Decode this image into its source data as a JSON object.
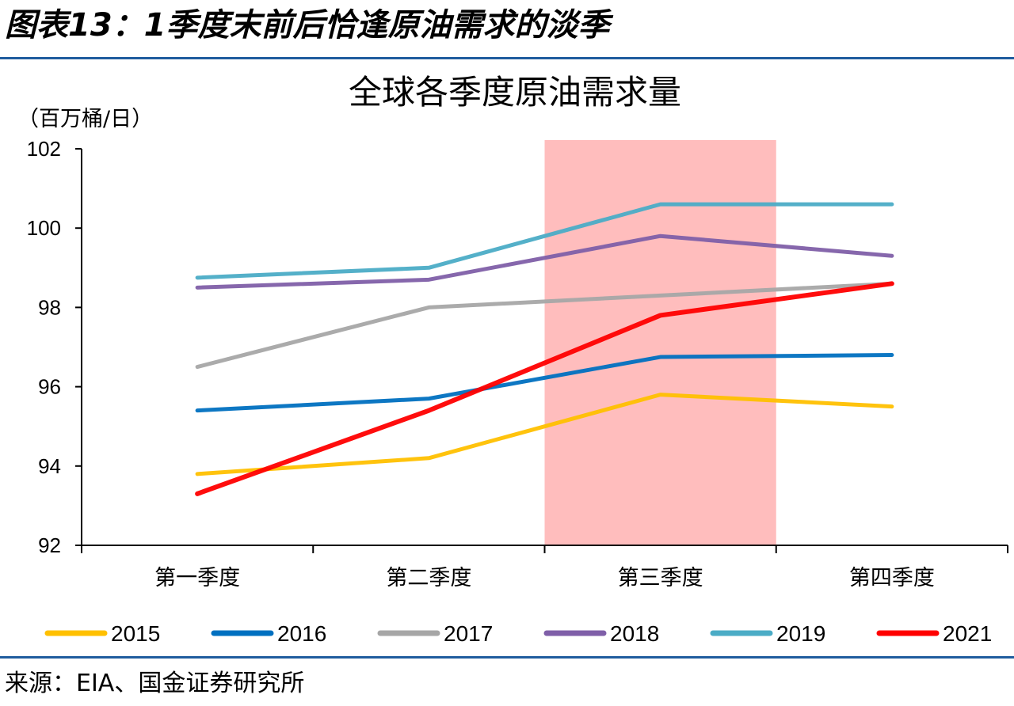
{
  "figure_title": "图表13：1季度末前后恰逢原油需求的淡季",
  "source": "来源：EIA、国金证券研究所",
  "chart_data": {
    "type": "line",
    "title": "全球各季度原油需求量",
    "unit_label": "（百万桶/日）",
    "categories": [
      "第一季度",
      "第二季度",
      "第三季度",
      "第四季度"
    ],
    "ylim": [
      92,
      102
    ],
    "yticks": [
      92,
      94,
      96,
      98,
      100,
      102
    ],
    "highlight": {
      "from_category": 2,
      "color": "#ff9999"
    },
    "grid": false,
    "legend_position": "bottom",
    "series": [
      {
        "name": "2015",
        "color": "#ffc000",
        "values": [
          93.8,
          94.2,
          95.8,
          95.5
        ]
      },
      {
        "name": "2016",
        "color": "#0070c0",
        "values": [
          95.4,
          95.7,
          96.75,
          96.8
        ]
      },
      {
        "name": "2017",
        "color": "#a6a6a6",
        "values": [
          96.5,
          98.0,
          98.3,
          98.6
        ]
      },
      {
        "name": "2018",
        "color": "#7f5fa8",
        "values": [
          98.5,
          98.7,
          99.8,
          99.3
        ]
      },
      {
        "name": "2019",
        "color": "#4bacc6",
        "values": [
          98.75,
          99.0,
          100.6,
          100.6
        ]
      },
      {
        "name": "2021",
        "color": "#ff0000",
        "values": [
          93.3,
          95.4,
          97.8,
          98.6
        ]
      }
    ]
  }
}
